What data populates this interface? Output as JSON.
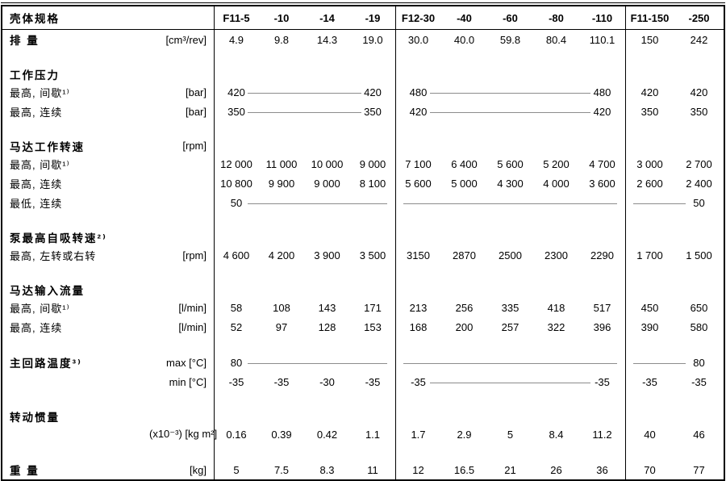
{
  "table": {
    "title": "壳体规格",
    "header_cols": [
      "F11-5",
      "-10",
      "-14",
      "-19",
      "F12-30",
      "-40",
      "-60",
      "-80",
      "-110",
      "F11-150",
      "-250"
    ],
    "rows": [
      {
        "type": "data",
        "bold": true,
        "label": "排 量",
        "unit": "[cm³/rev]",
        "cells": [
          "4.9",
          "9.8",
          "14.3",
          "19.0",
          "30.0",
          "40.0",
          "59.8",
          "80.4",
          "110.1",
          "150",
          "242"
        ]
      },
      {
        "type": "spacer"
      },
      {
        "type": "section",
        "bold": true,
        "label": "工作压力",
        "unit": ""
      },
      {
        "type": "data",
        "label": "最高, 间歇¹⁾",
        "unit": "[bar]",
        "cells": [
          "420",
          {
            "line": 2,
            "ext": "both"
          },
          "420",
          "480",
          {
            "line": 3,
            "ext": "both"
          },
          "480",
          "420",
          "420"
        ]
      },
      {
        "type": "data",
        "label": "最高, 连续",
        "unit": "[bar]",
        "cells": [
          "350",
          {
            "line": 2,
            "ext": "both"
          },
          "350",
          "420",
          {
            "line": 3,
            "ext": "both"
          },
          "420",
          "350",
          "350"
        ]
      },
      {
        "type": "spacer"
      },
      {
        "type": "section",
        "bold": true,
        "label": "马达工作转速",
        "unit": "[rpm]"
      },
      {
        "type": "data",
        "label": "最高, 间歇¹⁾",
        "unit": "",
        "cells": [
          "12 000",
          "11 000",
          "10 000",
          "9 000",
          "7 100",
          "6 400",
          "5 600",
          "5 200",
          "4 700",
          "3 000",
          "2 700"
        ]
      },
      {
        "type": "data",
        "label": "最高, 连续",
        "unit": "",
        "cells": [
          "10 800",
          "9 900",
          "9 000",
          "8 100",
          "5 600",
          "5 000",
          "4 300",
          "4 000",
          "3 600",
          "2 600",
          "2 400"
        ]
      },
      {
        "type": "data",
        "label": "最低, 连续",
        "unit": "",
        "cells": [
          "50",
          {
            "line": 3,
            "ext": "left"
          },
          {
            "line": 5,
            "ext": "none"
          },
          {
            "line": 1,
            "ext": "right"
          },
          "50"
        ]
      },
      {
        "type": "spacer"
      },
      {
        "type": "section",
        "bold": true,
        "label": "泵最高自吸转速²⁾",
        "unit": ""
      },
      {
        "type": "data",
        "label": "最高, 左转或右转",
        "unit": "[rpm]",
        "cells": [
          "4 600",
          "4 200",
          "3 900",
          "3 500",
          "3150",
          "2870",
          "2500",
          "2300",
          "2290",
          "1 700",
          "1 500"
        ]
      },
      {
        "type": "spacer"
      },
      {
        "type": "section",
        "bold": true,
        "label": "马达输入流量",
        "unit": ""
      },
      {
        "type": "data",
        "label": "最高, 间歇¹⁾",
        "unit": "[l/min]",
        "cells": [
          "58",
          "108",
          "143",
          "171",
          "213",
          "256",
          "335",
          "418",
          "517",
          "450",
          "650"
        ]
      },
      {
        "type": "data",
        "label": "最高, 连续",
        "unit": "[l/min]",
        "cells": [
          "52",
          "97",
          "128",
          "153",
          "168",
          "200",
          "257",
          "322",
          "396",
          "390",
          "580"
        ]
      },
      {
        "type": "spacer"
      },
      {
        "type": "data",
        "bold": true,
        "label": "主回路温度³⁾",
        "unit": "max [°C]",
        "cells": [
          "80",
          {
            "line": 3,
            "ext": "left"
          },
          {
            "line": 5,
            "ext": "none"
          },
          {
            "line": 1,
            "ext": "right"
          },
          "80"
        ]
      },
      {
        "type": "data",
        "label": "",
        "unit": "min [°C]",
        "cells": [
          "-35",
          "-35",
          "-30",
          "-35",
          "-35",
          {
            "line": 3,
            "ext": "both"
          },
          "-35",
          "-35",
          "-35"
        ]
      },
      {
        "type": "spacer"
      },
      {
        "type": "section",
        "bold": true,
        "label": "转动惯量",
        "unit": ""
      },
      {
        "type": "data",
        "label": "",
        "unit": "(x10⁻³) [kg m²]",
        "cells": [
          "0.16",
          "0.39",
          "0.42",
          "1.1",
          "1.7",
          "2.9",
          "5",
          "8.4",
          "11.2",
          "40",
          "46"
        ]
      },
      {
        "type": "spacer"
      },
      {
        "type": "data",
        "bold": true,
        "label": "重 量",
        "unit": "[kg]",
        "cells": [
          "5",
          "7.5",
          "8.3",
          "11",
          "12",
          "16.5",
          "21",
          "26",
          "36",
          "70",
          "77"
        ]
      }
    ]
  }
}
